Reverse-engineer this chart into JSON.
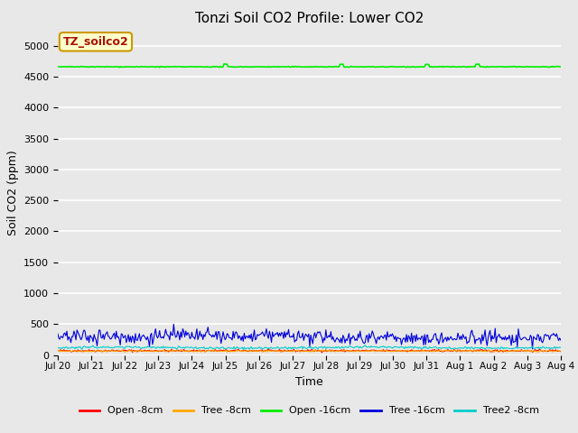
{
  "title": "Tonzi Soil CO2 Profile: Lower CO2",
  "xlabel": "Time",
  "ylabel": "Soil CO2 (ppm)",
  "ylim": [
    0,
    5250
  ],
  "yticks": [
    0,
    500,
    1000,
    1500,
    2000,
    2500,
    3000,
    3500,
    4000,
    4500,
    5000
  ],
  "fig_bg_color": "#e8e8e8",
  "plot_bg_color": "#e8e8e8",
  "title_fontsize": 11,
  "legend_label": "TZ_soilco2",
  "series": [
    {
      "label": "Open -8cm",
      "color": "#ff0000",
      "base": 70,
      "noise": 15
    },
    {
      "label": "Tree -8cm",
      "color": "#ffaa00",
      "base": 65,
      "noise": 12
    },
    {
      "label": "Open -16cm",
      "color": "#00ee00",
      "base": 4660,
      "noise": 8
    },
    {
      "label": "Tree -16cm",
      "color": "#0000dd",
      "base": 290,
      "noise": 55
    },
    {
      "label": "Tree2 -8cm",
      "color": "#00cccc",
      "base": 120,
      "noise": 20
    }
  ],
  "n_points": 500,
  "x_start": 20.0,
  "x_end": 35.0,
  "xtick_positions": [
    20,
    21,
    22,
    23,
    24,
    25,
    26,
    27,
    28,
    29,
    30,
    31,
    32,
    33,
    34,
    35
  ],
  "xtick_labels": [
    "Jul 20",
    "Jul 21",
    "Jul 22",
    "Jul 23",
    "Jul 24",
    "Jul 25",
    "Jul 26",
    "Jul 27",
    "Jul 28",
    "Jul 29",
    "Jul 30",
    "Jul 31",
    "Aug 1",
    "Aug 2",
    "Aug 3",
    "Aug 4"
  ]
}
